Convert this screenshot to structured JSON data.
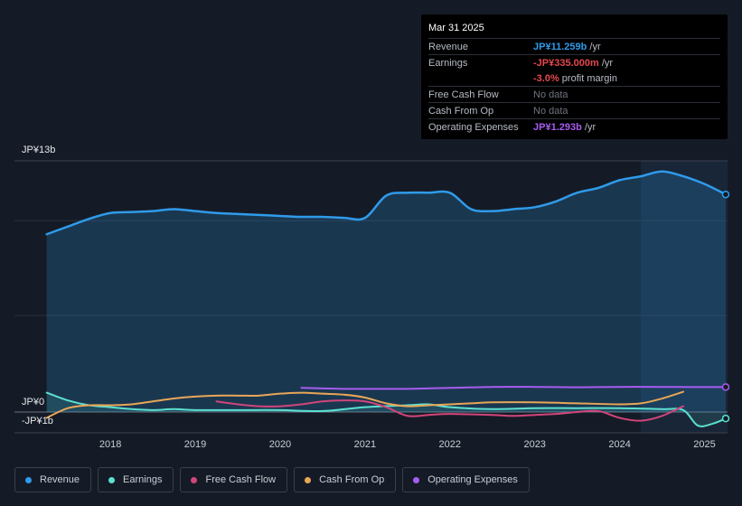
{
  "tooltip": {
    "date": "Mar 31 2025",
    "rows": {
      "revenue": {
        "label": "Revenue",
        "value": "JP¥11.259b",
        "unit": " /yr"
      },
      "earnings": {
        "label": "Earnings",
        "value": "-JP¥335.000m",
        "unit": " /yr"
      },
      "margin": {
        "value": "-3.0%",
        "unit": " profit margin"
      },
      "fcf": {
        "label": "Free Cash Flow",
        "value": "No data"
      },
      "cfo": {
        "label": "Cash From Op",
        "value": "No data"
      },
      "opex": {
        "label": "Operating Expenses",
        "value": "JP¥1.293b",
        "unit": " /yr"
      }
    }
  },
  "legend": [
    {
      "label": "Revenue",
      "color": "#2f9bea"
    },
    {
      "label": "Earnings",
      "color": "#5ce0cf"
    },
    {
      "label": "Free Cash Flow",
      "color": "#d1457a"
    },
    {
      "label": "Cash From Op",
      "color": "#e8a657"
    },
    {
      "label": "Operating Expenses",
      "color": "#a75cf1"
    }
  ],
  "chart_data": {
    "type": "area",
    "y_tick_labels": [
      "JP¥13b",
      "JP¥0",
      "-JP¥1b"
    ],
    "ylim": [
      -1,
      13
    ],
    "xlim": [
      2017.2,
      2025.25
    ],
    "x_ticks": [
      2018,
      2019,
      2020,
      2021,
      2022,
      2023,
      2024,
      2025
    ],
    "x_tick_labels": [
      "2018",
      "2019",
      "2020",
      "2021",
      "2022",
      "2023",
      "2024",
      "2025"
    ],
    "forecast_shade_from": 2024.25,
    "series": [
      {
        "key": "revenue",
        "color": "#2f9bea",
        "fill": true,
        "points": [
          [
            2017.25,
            9.2
          ],
          [
            2017.5,
            9.6
          ],
          [
            2017.75,
            10.0
          ],
          [
            2018.0,
            10.3
          ],
          [
            2018.25,
            10.35
          ],
          [
            2018.5,
            10.4
          ],
          [
            2018.75,
            10.5
          ],
          [
            2019.0,
            10.4
          ],
          [
            2019.25,
            10.3
          ],
          [
            2019.5,
            10.25
          ],
          [
            2019.75,
            10.2
          ],
          [
            2020.0,
            10.15
          ],
          [
            2020.25,
            10.1
          ],
          [
            2020.5,
            10.1
          ],
          [
            2020.75,
            10.05
          ],
          [
            2021.0,
            10.05
          ],
          [
            2021.25,
            11.2
          ],
          [
            2021.5,
            11.35
          ],
          [
            2021.75,
            11.35
          ],
          [
            2022.0,
            11.35
          ],
          [
            2022.25,
            10.5
          ],
          [
            2022.5,
            10.4
          ],
          [
            2022.75,
            10.5
          ],
          [
            2023.0,
            10.6
          ],
          [
            2023.25,
            10.9
          ],
          [
            2023.5,
            11.35
          ],
          [
            2023.75,
            11.6
          ],
          [
            2024.0,
            12.0
          ],
          [
            2024.25,
            12.2
          ],
          [
            2024.5,
            12.45
          ],
          [
            2024.75,
            12.2
          ],
          [
            2025.0,
            11.8
          ],
          [
            2025.25,
            11.26
          ]
        ]
      },
      {
        "key": "earnings",
        "color": "#5ce0cf",
        "fill": true,
        "points": [
          [
            2017.25,
            1.0
          ],
          [
            2017.5,
            0.6
          ],
          [
            2017.75,
            0.35
          ],
          [
            2018.0,
            0.25
          ],
          [
            2018.25,
            0.15
          ],
          [
            2018.5,
            0.1
          ],
          [
            2018.75,
            0.15
          ],
          [
            2019.0,
            0.1
          ],
          [
            2019.5,
            0.1
          ],
          [
            2020.0,
            0.1
          ],
          [
            2020.5,
            0.05
          ],
          [
            2021.0,
            0.25
          ],
          [
            2021.5,
            0.35
          ],
          [
            2021.75,
            0.4
          ],
          [
            2022.0,
            0.25
          ],
          [
            2022.5,
            0.15
          ],
          [
            2023.0,
            0.2
          ],
          [
            2023.5,
            0.2
          ],
          [
            2024.0,
            0.2
          ],
          [
            2024.5,
            0.15
          ],
          [
            2024.75,
            0.1
          ],
          [
            2024.92,
            -0.7
          ],
          [
            2025.1,
            -0.6
          ],
          [
            2025.25,
            -0.335
          ]
        ]
      },
      {
        "key": "fcf",
        "color": "#d1457a",
        "fill": false,
        "points": [
          [
            2019.25,
            0.55
          ],
          [
            2019.5,
            0.4
          ],
          [
            2019.75,
            0.3
          ],
          [
            2020.0,
            0.3
          ],
          [
            2020.25,
            0.4
          ],
          [
            2020.5,
            0.55
          ],
          [
            2020.75,
            0.6
          ],
          [
            2021.0,
            0.55
          ],
          [
            2021.25,
            0.25
          ],
          [
            2021.5,
            -0.2
          ],
          [
            2021.75,
            -0.15
          ],
          [
            2022.0,
            -0.1
          ],
          [
            2022.5,
            -0.15
          ],
          [
            2022.75,
            -0.2
          ],
          [
            2023.0,
            -0.15
          ],
          [
            2023.25,
            -0.1
          ],
          [
            2023.5,
            0.0
          ],
          [
            2023.75,
            0.05
          ],
          [
            2024.0,
            -0.3
          ],
          [
            2024.25,
            -0.45
          ],
          [
            2024.5,
            -0.2
          ],
          [
            2024.75,
            0.3
          ]
        ]
      },
      {
        "key": "cfo",
        "color": "#e8a657",
        "fill": false,
        "points": [
          [
            2017.25,
            -0.3
          ],
          [
            2017.5,
            0.2
          ],
          [
            2017.75,
            0.35
          ],
          [
            2018.0,
            0.35
          ],
          [
            2018.25,
            0.4
          ],
          [
            2018.5,
            0.55
          ],
          [
            2018.75,
            0.7
          ],
          [
            2019.0,
            0.8
          ],
          [
            2019.25,
            0.85
          ],
          [
            2019.5,
            0.85
          ],
          [
            2019.75,
            0.85
          ],
          [
            2020.0,
            0.95
          ],
          [
            2020.25,
            1.0
          ],
          [
            2020.5,
            0.95
          ],
          [
            2020.75,
            0.9
          ],
          [
            2021.0,
            0.75
          ],
          [
            2021.25,
            0.45
          ],
          [
            2021.5,
            0.3
          ],
          [
            2021.75,
            0.35
          ],
          [
            2022.0,
            0.4
          ],
          [
            2022.25,
            0.45
          ],
          [
            2022.5,
            0.5
          ],
          [
            2023.0,
            0.5
          ],
          [
            2023.5,
            0.45
          ],
          [
            2024.0,
            0.4
          ],
          [
            2024.25,
            0.45
          ],
          [
            2024.5,
            0.7
          ],
          [
            2024.75,
            1.05
          ]
        ]
      },
      {
        "key": "opex",
        "color": "#a75cf1",
        "fill": false,
        "points": [
          [
            2020.25,
            1.25
          ],
          [
            2020.75,
            1.2
          ],
          [
            2021.0,
            1.2
          ],
          [
            2021.5,
            1.2
          ],
          [
            2022.0,
            1.25
          ],
          [
            2022.5,
            1.3
          ],
          [
            2023.0,
            1.3
          ],
          [
            2023.5,
            1.28
          ],
          [
            2024.0,
            1.3
          ],
          [
            2024.5,
            1.3
          ],
          [
            2025.0,
            1.29
          ],
          [
            2025.25,
            1.293
          ]
        ]
      }
    ]
  }
}
